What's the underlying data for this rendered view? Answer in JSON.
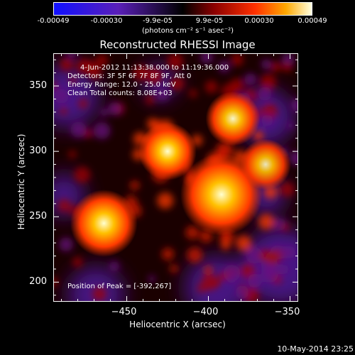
{
  "chart_data": {
    "type": "heatmap",
    "title": "Reconstructed RHESSI Image",
    "xlabel": "Heliocentric X (arcsec)",
    "ylabel": "Heliocentric Y (arcsec)",
    "xlim": [
      -495,
      -345
    ],
    "ylim": [
      185,
      375
    ],
    "x_ticks": [
      "-450",
      "-400",
      "-350"
    ],
    "y_ticks": [
      "200",
      "250",
      "300",
      "350"
    ],
    "colorbar": {
      "ticks": [
        "-0.00049",
        "-0.00030",
        "-9.9e-05",
        "9.9e-05",
        "0.00030",
        "0.00049"
      ],
      "unit": "(photons cm⁻² s⁻¹ asec⁻²)",
      "range": [
        -0.00049,
        0.00049
      ]
    },
    "info_lines": [
      "4-Jun-2012 11:13:38.000 to 11:19:36.000",
      "Detectors: 3F 5F 6F 7F 8F 9F, Att 0",
      "Energy Range: 12.0 - 25.0 keV",
      "Clean     Total counts: 8.08E+03"
    ],
    "peak_label": "Position of Peak = [-392,267]",
    "peak": [
      -392,
      267
    ],
    "sources": [
      {
        "x": -392,
        "y": 267,
        "value": 0.00049
      },
      {
        "x": -464,
        "y": 245,
        "value": 0.00036
      },
      {
        "x": -425,
        "y": 300,
        "value": 0.00028
      },
      {
        "x": -385,
        "y": 325,
        "value": 0.00025
      },
      {
        "x": -365,
        "y": 290,
        "value": 0.00022
      }
    ]
  },
  "footer": "10-May-2014 23:25"
}
